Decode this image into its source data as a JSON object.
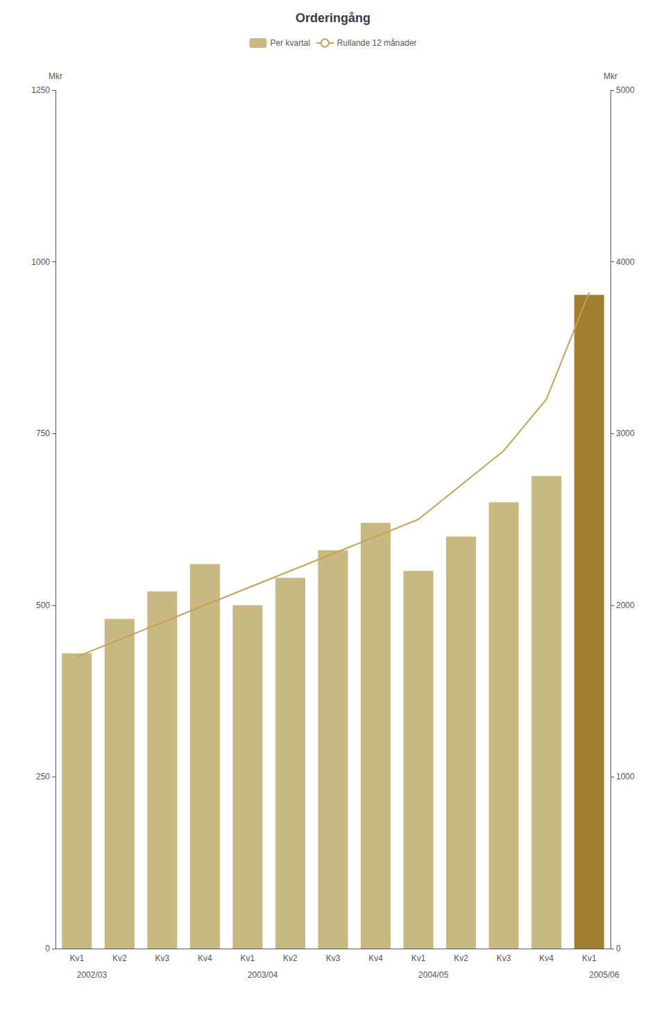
{
  "chart_data": {
    "type": "bar",
    "title": "Orderingång",
    "categories": [
      "Kv1",
      "Kv2",
      "Kv3",
      "Kv4",
      "Kv1",
      "Kv2",
      "Kv3",
      "Kv4",
      "Kv1",
      "Kv2",
      "Kv3",
      "Kv4",
      "Kv1"
    ],
    "annotations": [
      "2002/03",
      null,
      null,
      null,
      "2003/04",
      null,
      null,
      null,
      "2004/05",
      null,
      null,
      null,
      "2005/06"
    ],
    "ylabel": "Mkr",
    "y2label": "Mkr",
    "series": [
      {
        "name": "Per kvartal",
        "type": "bar",
        "colors": [
          "#c8b882",
          "#c8b882",
          "#c8b882",
          "#c8b882",
          "#c8b882",
          "#c8b882",
          "#c8b882",
          "#c8b882",
          "#c8b882",
          "#c8b882",
          "#c8b882",
          "#c8b882",
          "#a08030"
        ],
        "values": [
          430,
          480,
          520,
          560,
          500,
          540,
          580,
          620,
          550,
          600,
          650,
          688,
          952
        ]
      },
      {
        "name": "Rullande 12 månader",
        "type": "line",
        "color": "#c8a050",
        "axis": "y2",
        "values": [
          1700,
          1800,
          1900,
          2000,
          2100,
          2200,
          2300,
          2400,
          2500,
          2700,
          2900,
          3200,
          3822
        ]
      }
    ],
    "ylim": [
      0,
      1250
    ],
    "yticks": [
      0,
      250,
      500,
      750,
      1000,
      1250
    ],
    "y2lim": [
      0,
      5000
    ],
    "y2ticks": [
      0,
      1000,
      2000,
      3000,
      4000,
      5000
    ],
    "grid": false,
    "legend": "top"
  }
}
